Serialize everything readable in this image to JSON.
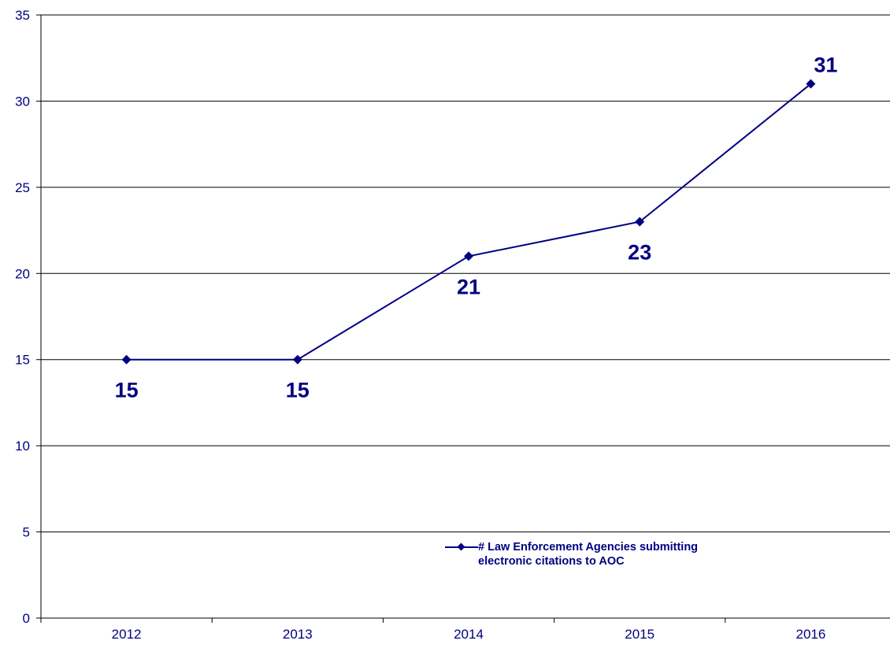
{
  "chart_data": {
    "type": "line",
    "categories": [
      "2012",
      "2013",
      "2014",
      "2015",
      "2016"
    ],
    "series": [
      {
        "name": "# Law Enforcement Agencies submitting electronic citations to AOC",
        "values": [
          15,
          15,
          21,
          23,
          31
        ]
      }
    ],
    "data_labels": [
      "15",
      "15",
      "21",
      "23",
      "31"
    ],
    "y_ticks": [
      "0",
      "5",
      "10",
      "15",
      "20",
      "25",
      "30",
      "35"
    ],
    "ylim": [
      0,
      35
    ],
    "title": "",
    "xlabel": "",
    "ylabel": "",
    "grid": true,
    "legend_position": "bottom-right",
    "colors": {
      "series": "#000080",
      "axis_text": "#000080",
      "gridline": "#000000"
    }
  }
}
